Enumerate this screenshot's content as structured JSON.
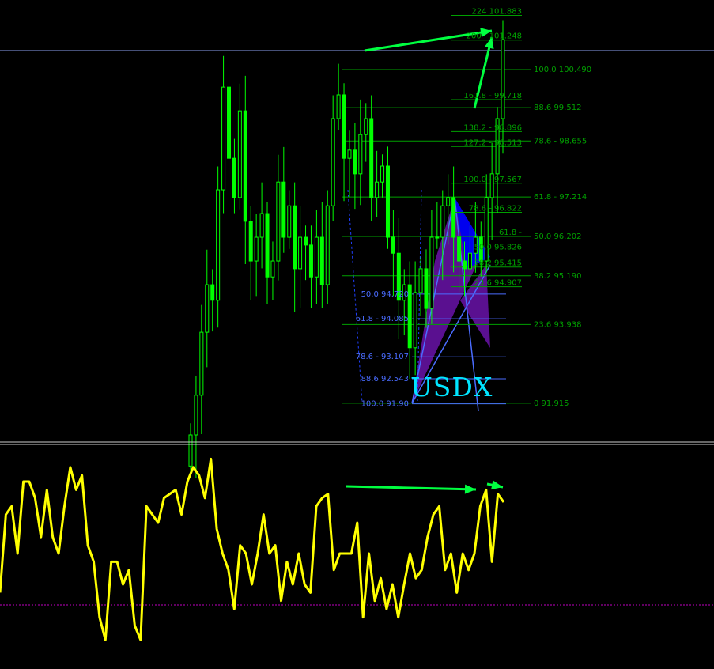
{
  "colors": {
    "background": "#000000",
    "candle": "#00ff00",
    "fib_green": "#00a000",
    "fib_blue": "#4a6cff",
    "oscillator": "#ffff00",
    "level": "#c000c0",
    "arrow": "#00ff40",
    "symbol": "#00e5ff",
    "pattern_blue": "#0000ee",
    "pattern_purple": "#5a1090"
  },
  "symbol_label": "USDX",
  "chart_data": [
    {
      "type": "candlestick",
      "title": "",
      "closes": [
        91.1,
        92.12,
        93.74,
        94.96,
        94.56,
        97.4,
        100.04,
        98.21,
        97.2,
        99.43,
        96.59,
        95.57,
        96.18,
        96.79,
        95.16,
        95.57,
        97.6,
        96.18,
        96.99,
        95.37,
        96.18,
        95.98,
        95.16,
        96.18,
        94.96,
        96.99,
        99.23,
        99.84,
        98.21,
        98.42,
        97.81,
        98.82,
        99.23,
        97.2,
        97.6,
        98.01,
        96.18,
        95.77,
        94.56,
        94.96,
        93.34,
        94.76,
        95.37,
        94.35,
        96.18,
        96.18,
        96.99,
        97.2,
        96.18,
        95.57,
        95.37,
        95.77,
        96.18,
        95.57,
        97.2,
        97.81,
        99.23,
        101.26
      ],
      "horizontal_line": 100.98,
      "fib_retracement_green": [
        {
          "label": "100.0 100.490",
          "price": 100.49
        },
        {
          "label": "88.6 99.512",
          "price": 99.512
        },
        {
          "label": "78.6 - 98.655",
          "price": 98.655
        },
        {
          "label": "61.8 - 97.214",
          "price": 97.214
        },
        {
          "label": "50.0 96.202",
          "price": 96.202
        },
        {
          "label": "38.2 95.190",
          "price": 95.19
        },
        {
          "label": "23.6 93.938",
          "price": 93.938
        },
        {
          "label": "0 91.915",
          "price": 91.915
        }
      ],
      "fib_extension_green": [
        {
          "label": "224 101.883",
          "price": 101.883
        },
        {
          "label": "200 - 101.248",
          "price": 101.248
        },
        {
          "label": "161.8 - 99.718",
          "price": 99.718
        },
        {
          "label": "138.2 - 98.896",
          "price": 98.896
        },
        {
          "label": "127.2 - 98.513",
          "price": 98.513
        },
        {
          "label": "100.0 - 97.567",
          "price": 97.567
        },
        {
          "label": "78.6 - 96.822",
          "price": 96.822
        },
        {
          "label": "61.8 -",
          "price": 96.202
        },
        {
          "label": "50.0 95.826",
          "price": 95.826
        },
        {
          "label": "38.2 95.415",
          "price": 95.415
        },
        {
          "label": "23.6 94.907",
          "price": 94.907
        }
      ],
      "fib_blue": [
        {
          "label": "50.0 94.720",
          "price": 94.72
        },
        {
          "label": "61.8 - 94.085",
          "price": 94.085
        },
        {
          "label": "78.6 - 93.107",
          "price": 93.107
        },
        {
          "label": "88.6 92.543",
          "price": 92.543
        },
        {
          "label": "100.0 91.90",
          "price": 91.9
        }
      ]
    },
    {
      "type": "line",
      "title": "",
      "ylim": [
        0,
        100
      ],
      "level": 25,
      "values": [
        31,
        69,
        73,
        50,
        85,
        85,
        77,
        58,
        81,
        58,
        50,
        73,
        92,
        81,
        88,
        54,
        46,
        19,
        8,
        46,
        46,
        35,
        42,
        15,
        8,
        73,
        69,
        65,
        77,
        79,
        81,
        69,
        85,
        92,
        88,
        77,
        96,
        62,
        50,
        42,
        23,
        54,
        50,
        35,
        50,
        69,
        50,
        54,
        27,
        46,
        35,
        50,
        35,
        31,
        73,
        77,
        79,
        42,
        50,
        50,
        50,
        65,
        19,
        50,
        27,
        38,
        23,
        35,
        19,
        35,
        50,
        38,
        42,
        58,
        69,
        73,
        42,
        50,
        31,
        50,
        42,
        50,
        73,
        81,
        46,
        79,
        75
      ]
    }
  ]
}
